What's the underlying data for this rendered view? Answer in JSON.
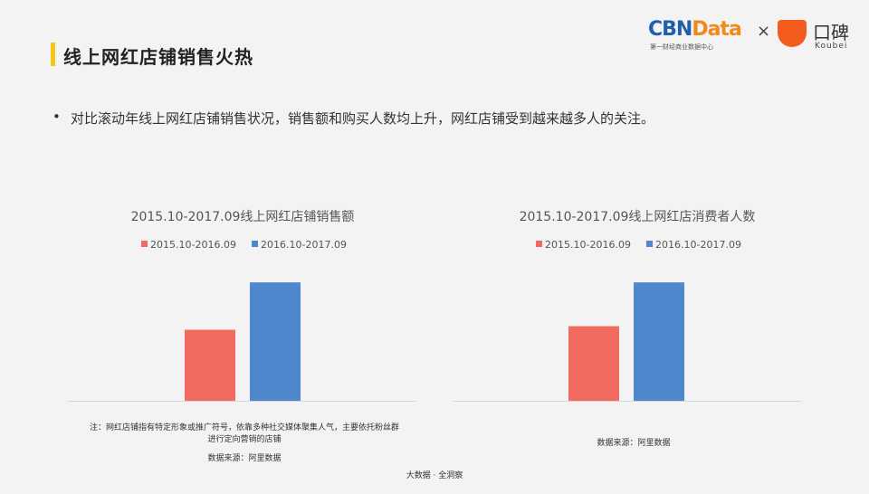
{
  "header": {
    "title": "线上网红店铺销售火热",
    "logo_left": "CBNData",
    "logo_left_sub": "第一财经商业数据中心",
    "logo_sep": "×",
    "logo_right": "口碑",
    "logo_right_sub": "Koubei"
  },
  "bullet": {
    "marker": "•",
    "text": "对比滚动年线上网红店铺销售状况，销售额和购买人数均上升，网红店铺受到越来越多人的关注。"
  },
  "colors": {
    "series1": "#f06a60",
    "series2": "#4f87cc",
    "accent": "#f5c518"
  },
  "chart_data": [
    {
      "type": "bar",
      "title": "2015.10-2017.09线上网红店铺销售额",
      "legend_placement": "top",
      "grid": false,
      "categories": [
        ""
      ],
      "series": [
        {
          "name": "2015.10-2016.09",
          "values": [
            0.6
          ]
        },
        {
          "name": "2016.10-2017.09",
          "values": [
            1.0
          ]
        }
      ],
      "ylim": [
        0,
        1.1
      ],
      "value_note": "relative heights, no axis printed"
    },
    {
      "type": "bar",
      "title": "2015.10-2017.09线上网红店消费者人数",
      "legend_placement": "top",
      "grid": false,
      "categories": [
        ""
      ],
      "series": [
        {
          "name": "2015.10-2016.09",
          "values": [
            0.63
          ]
        },
        {
          "name": "2016.10-2017.09",
          "values": [
            1.0
          ]
        }
      ],
      "ylim": [
        0,
        1.1
      ],
      "value_note": "relative heights, no axis printed"
    }
  ],
  "footer": {
    "note1_line1": "注：网红店铺指有特定形象或推广符号，依靠多种社交媒体聚集人气，主要依托粉丝群",
    "note1_line2": "进行定向营销的店铺",
    "source1": "数据来源：阿里数据",
    "source2": "数据来源：阿里数据",
    "tagline": "大数据 · 全洞察"
  }
}
